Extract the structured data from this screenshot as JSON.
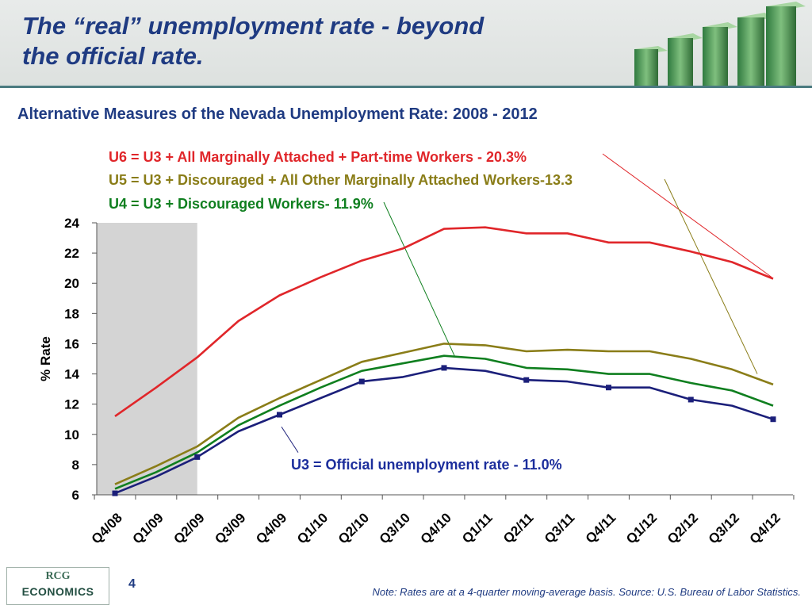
{
  "header": {
    "title_line1": "The “real” unemployment rate - beyond",
    "title_line2": "the official rate."
  },
  "subtitle": "Alternative Measures of the Nevada Unemployment Rate: 2008 - 2012",
  "footer": {
    "logo_top": "RCG",
    "logo_bottom": "ECONOMICS",
    "page_number": "4",
    "note": "Note: Rates are at a 4-quarter moving-average basis. Source: U.S. Bureau of Labor Statistics."
  },
  "colors": {
    "U6": "#e0262a",
    "U5": "#8a7d18",
    "U4": "#0f7f1f",
    "U3": "#1b1f7a",
    "recession_shade": "#d4d4d4",
    "title_blue": "#1f3b82"
  },
  "chart_data": {
    "type": "line",
    "ylabel": "% Rate",
    "xlabel": "",
    "ylim": [
      6,
      24
    ],
    "yticks": [
      "6",
      "8",
      "10",
      "12",
      "14",
      "16",
      "18",
      "20",
      "22",
      "24"
    ],
    "categories": [
      "Q4/08",
      "Q1/09",
      "Q2/09",
      "Q3/09",
      "Q4/09",
      "Q1/10",
      "Q2/10",
      "Q3/10",
      "Q4/10",
      "Q1/11",
      "Q2/11",
      "Q3/11",
      "Q4/11",
      "Q1/12",
      "Q2/12",
      "Q3/12",
      "Q4/12"
    ],
    "shaded_region": [
      "Q4/08",
      "Q2/09"
    ],
    "series": [
      {
        "key": "U6",
        "values": [
          11.2,
          13.1,
          15.1,
          17.5,
          19.2,
          20.4,
          21.5,
          22.3,
          23.6,
          23.7,
          23.3,
          23.3,
          22.7,
          22.7,
          22.1,
          21.4,
          20.3
        ]
      },
      {
        "key": "U5",
        "values": [
          6.7,
          7.9,
          9.2,
          11.1,
          12.4,
          13.6,
          14.8,
          15.4,
          16.0,
          15.9,
          15.5,
          15.6,
          15.5,
          15.5,
          15.0,
          14.3,
          13.3
        ]
      },
      {
        "key": "U4",
        "values": [
          6.4,
          7.5,
          8.8,
          10.6,
          11.9,
          13.1,
          14.2,
          14.7,
          15.2,
          15.0,
          14.4,
          14.3,
          14.0,
          14.0,
          13.4,
          12.9,
          11.9
        ]
      },
      {
        "key": "U3",
        "values": [
          6.1,
          7.2,
          8.5,
          10.2,
          11.3,
          12.4,
          13.5,
          13.8,
          14.4,
          14.2,
          13.6,
          13.5,
          13.1,
          13.1,
          12.3,
          11.9,
          11.0
        ]
      }
    ],
    "annotations": {
      "U6": "U6 = U3 + All Marginally Attached + Part-time Workers - 20.3%",
      "U5": "U5 = U3 + Discouraged + All Other Marginally Attached Workers-13.3",
      "U4": "U4 = U3 + Discouraged Workers- 11.9%",
      "U3": "U3 = Official unemployment rate - 11.0%"
    }
  }
}
